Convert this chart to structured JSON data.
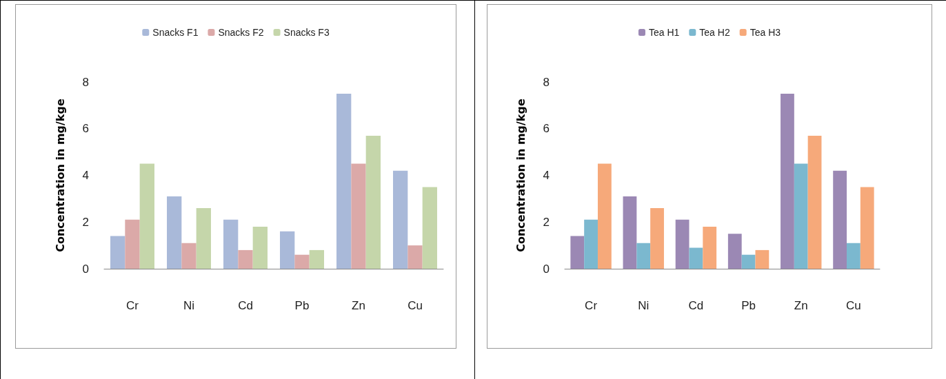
{
  "chart_data": [
    {
      "type": "bar",
      "ylabel": "Concentration in mg/kge",
      "categories": [
        "Cr",
        "Ni",
        "Cd",
        "Pb",
        "Zn",
        "Cu"
      ],
      "series": [
        {
          "name": "Snacks F1",
          "color": "#a9b9d9",
          "values": [
            1.4,
            3.1,
            2.1,
            1.6,
            7.5,
            4.2
          ]
        },
        {
          "name": "Snacks F2",
          "color": "#dba9a8",
          "values": [
            2.1,
            1.1,
            0.8,
            0.6,
            4.5,
            1.0
          ]
        },
        {
          "name": "Snacks F3",
          "color": "#c5d6aa",
          "values": [
            4.5,
            2.6,
            1.8,
            0.8,
            5.7,
            3.5
          ]
        }
      ],
      "ylim": [
        0,
        8
      ],
      "yticks": [
        0,
        2,
        4,
        6,
        8
      ],
      "grid": false,
      "legend": "top"
    },
    {
      "type": "bar",
      "ylabel": "Concentration in mg/kge",
      "categories": [
        "Cr",
        "Ni",
        "Cd",
        "Pb",
        "Zn",
        "Cu"
      ],
      "series": [
        {
          "name": "Tea H1",
          "color": "#9b88b4",
          "values": [
            1.4,
            3.1,
            2.1,
            1.5,
            7.5,
            4.2
          ]
        },
        {
          "name": "Tea H2",
          "color": "#7bb8cf",
          "values": [
            2.1,
            1.1,
            0.9,
            0.6,
            4.5,
            1.1
          ]
        },
        {
          "name": "Tea H3",
          "color": "#f6a97a",
          "values": [
            4.5,
            2.6,
            1.8,
            0.8,
            5.7,
            3.5
          ]
        }
      ],
      "ylim": [
        0,
        8
      ],
      "yticks": [
        0,
        2,
        4,
        6,
        8
      ],
      "grid": false,
      "legend": "top"
    }
  ]
}
